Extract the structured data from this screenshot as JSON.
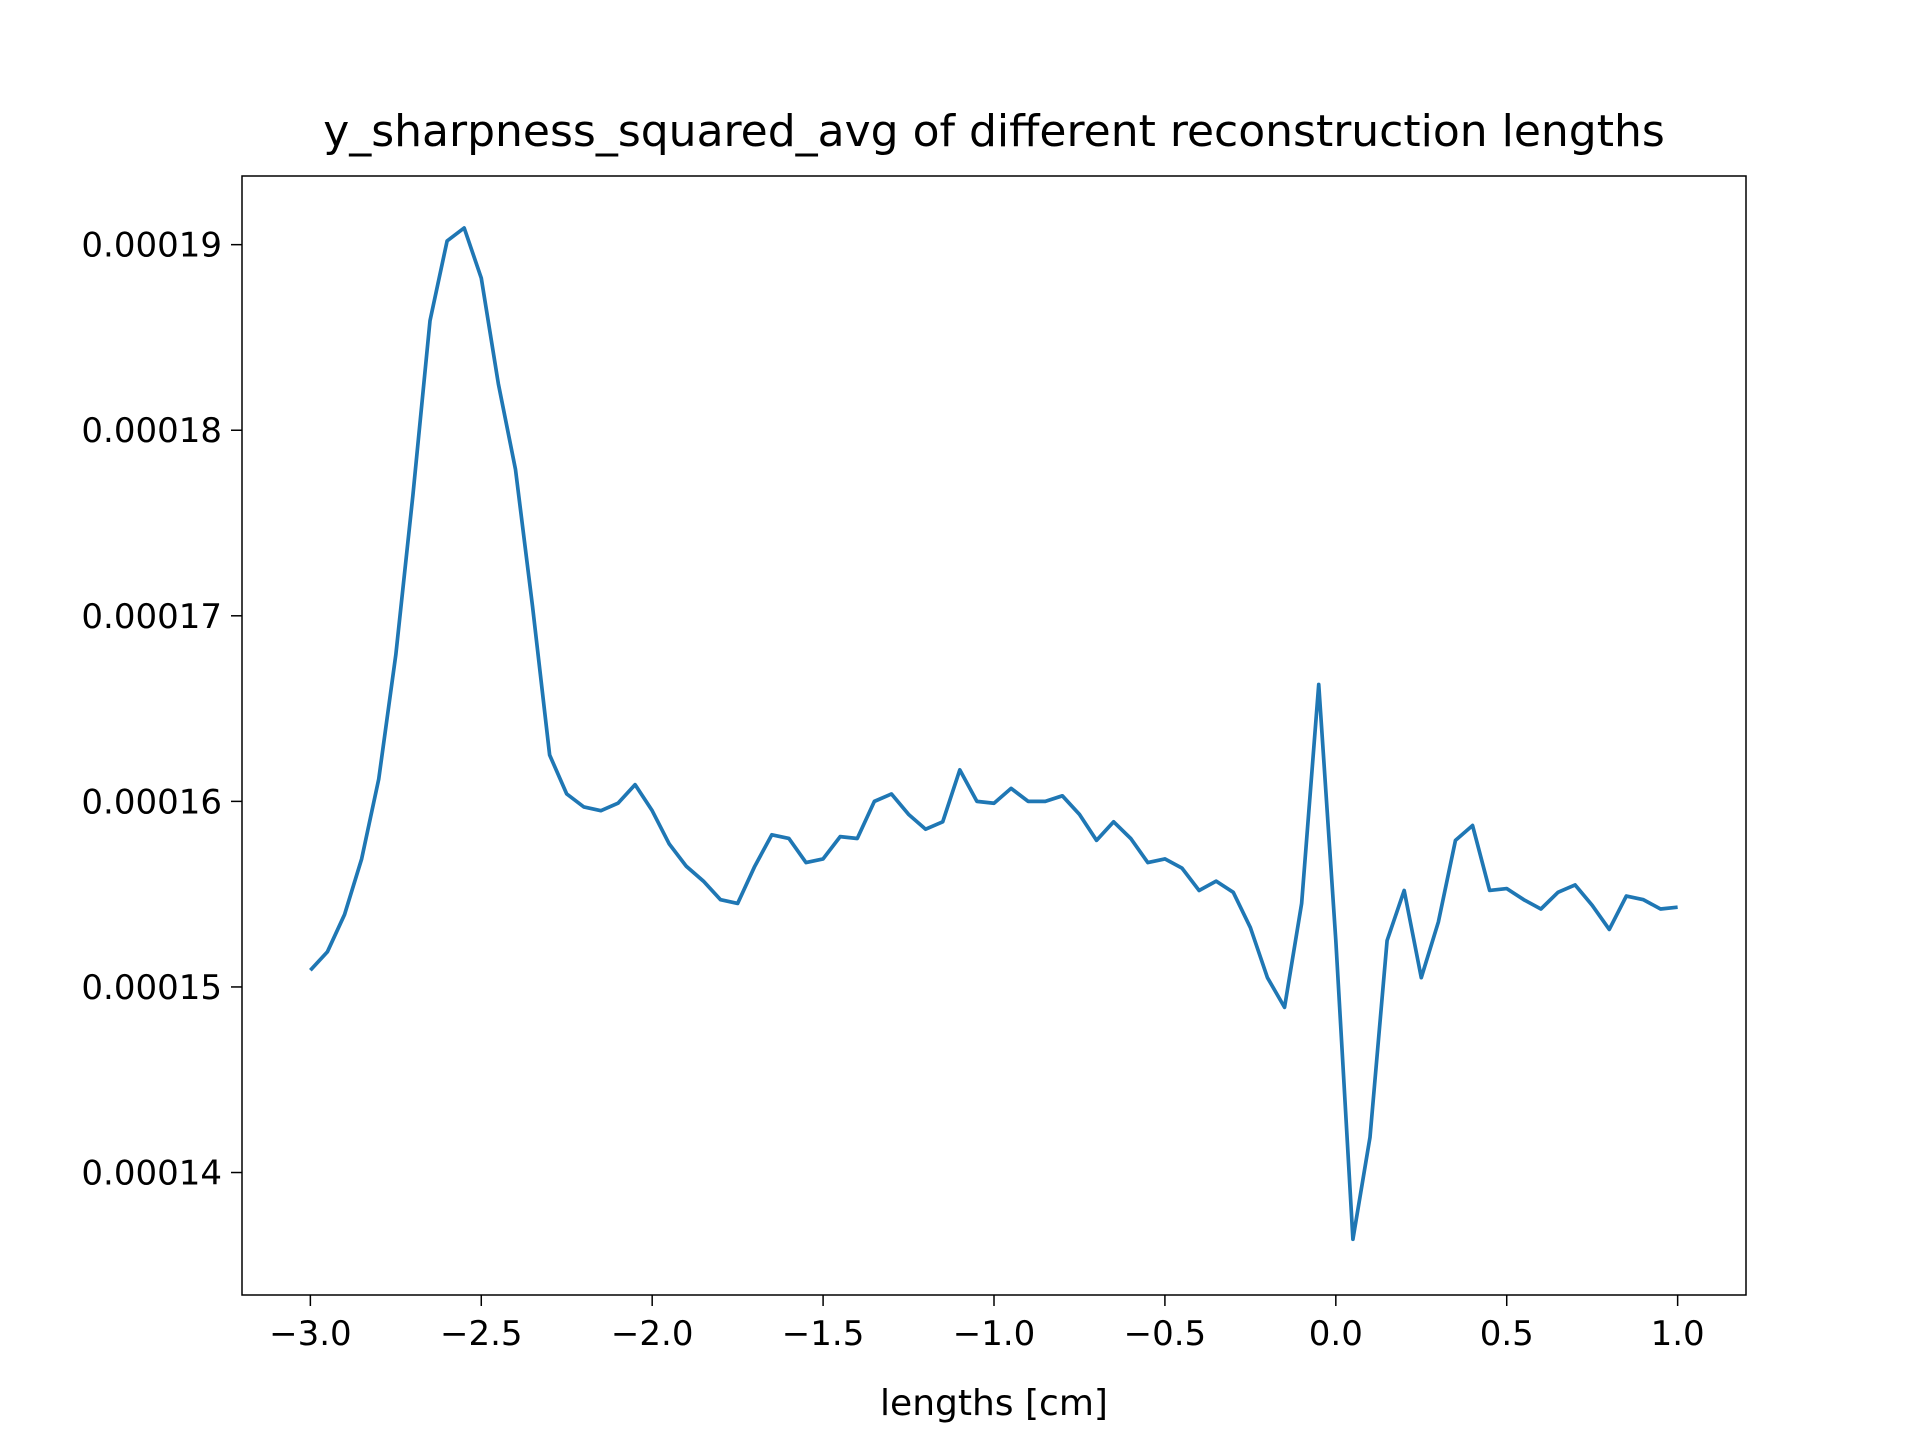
{
  "chart_data": {
    "type": "line",
    "title": "y_sharpness_squared_avg of different reconstruction lengths",
    "x_label": "lengths [cm]",
    "x": [
      -3.0,
      -2.95,
      -2.9,
      -2.85,
      -2.8,
      -2.75,
      -2.7,
      -2.65,
      -2.6,
      -2.55,
      -2.5,
      -2.45,
      -2.4,
      -2.35,
      -2.3,
      -2.25,
      -2.2,
      -2.15,
      -2.1,
      -2.05,
      -2.0,
      -1.95,
      -1.9,
      -1.85,
      -1.8,
      -1.75,
      -1.7,
      -1.65,
      -1.6,
      -1.55,
      -1.5,
      -1.45,
      -1.4,
      -1.35,
      -1.3,
      -1.25,
      -1.2,
      -1.15,
      -1.1,
      -1.05,
      -1.0,
      -0.95,
      -0.9,
      -0.85,
      -0.8,
      -0.75,
      -0.7,
      -0.65,
      -0.6,
      -0.55,
      -0.5,
      -0.45,
      -0.4,
      -0.35,
      -0.3,
      -0.25,
      -0.2,
      -0.15,
      -0.1,
      -0.05,
      0.0,
      0.05,
      0.1,
      0.15,
      0.2,
      0.25,
      0.3,
      0.35,
      0.4,
      0.45,
      0.5,
      0.55,
      0.6,
      0.65,
      0.7,
      0.75,
      0.8,
      0.85,
      0.9,
      0.95,
      1.0
    ],
    "series": [
      {
        "color": "#1f77b4",
        "values": [
          0.0001509,
          0.0001519,
          0.0001539,
          0.0001569,
          0.0001612,
          0.0001679,
          0.0001765,
          0.0001859,
          0.0001902,
          0.0001909,
          0.0001882,
          0.0001825,
          0.0001779,
          0.0001705,
          0.0001625,
          0.0001604,
          0.0001597,
          0.0001595,
          0.0001599,
          0.0001609,
          0.0001595,
          0.0001577,
          0.0001565,
          0.0001557,
          0.0001547,
          0.0001545,
          0.0001565,
          0.0001582,
          0.000158,
          0.0001567,
          0.0001569,
          0.0001581,
          0.000158,
          0.00016,
          0.0001604,
          0.0001593,
          0.0001585,
          0.0001589,
          0.0001617,
          0.00016,
          0.0001599,
          0.0001607,
          0.00016,
          0.00016,
          0.0001603,
          0.0001593,
          0.0001579,
          0.0001589,
          0.000158,
          0.0001567,
          0.0001569,
          0.0001564,
          0.0001552,
          0.0001557,
          0.0001551,
          0.0001532,
          0.0001505,
          0.0001489,
          0.0001545,
          0.0001663,
          0.0001525,
          0.0001364,
          0.0001419,
          0.0001525,
          0.0001552,
          0.0001505,
          0.0001535,
          0.0001579,
          0.0001587,
          0.0001552,
          0.0001553,
          0.0001547,
          0.0001542,
          0.0001551,
          0.0001555,
          0.0001544,
          0.0001531,
          0.0001549,
          0.0001547,
          0.0001542,
          0.0001543
        ]
      }
    ],
    "xlim": [
      -3.2,
      1.2
    ],
    "ylim": [
      0.0001334,
      0.0001937
    ],
    "xticks": [
      {
        "value": -3.0,
        "label": "−3.0"
      },
      {
        "value": -2.5,
        "label": "−2.5"
      },
      {
        "value": -2.0,
        "label": "−2.0"
      },
      {
        "value": -1.5,
        "label": "−1.5"
      },
      {
        "value": -1.0,
        "label": "−1.0"
      },
      {
        "value": -0.5,
        "label": "−0.5"
      },
      {
        "value": 0.0,
        "label": "0.0"
      },
      {
        "value": 0.5,
        "label": "0.5"
      },
      {
        "value": 1.0,
        "label": "1.0"
      }
    ],
    "yticks": [
      0.00014,
      0.00015,
      0.00016,
      0.00017,
      0.00018,
      0.00019
    ],
    "grid": false
  }
}
